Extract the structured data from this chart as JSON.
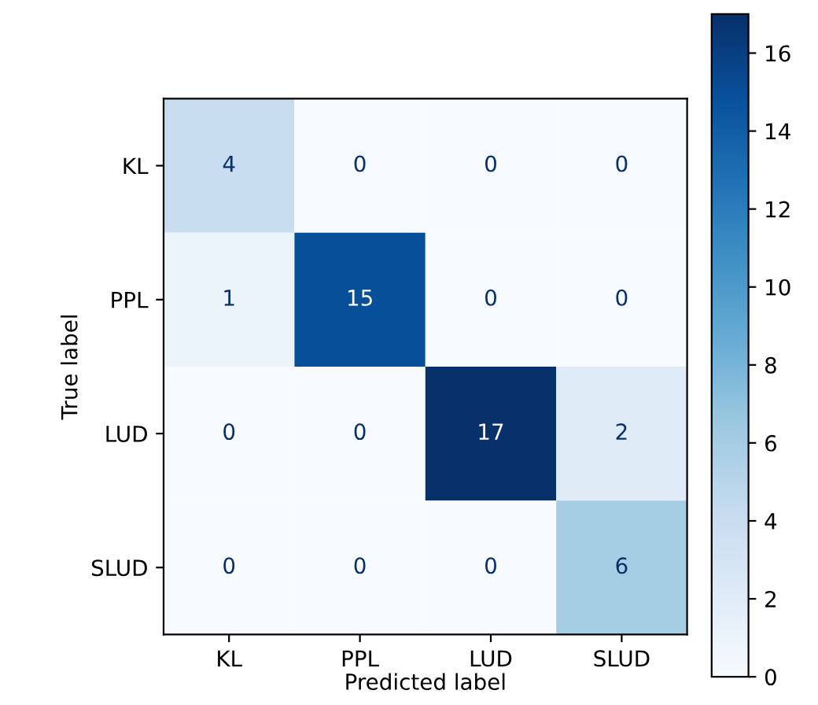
{
  "chart_data": {
    "type": "heatmap",
    "xlabel": "Predicted label",
    "ylabel": "True label",
    "categories": [
      "KL",
      "PPL",
      "LUD",
      "SLUD"
    ],
    "y_categories": [
      "KL",
      "PPL",
      "LUD",
      "SLUD"
    ],
    "cells": [
      [
        4,
        0,
        0,
        0
      ],
      [
        1,
        15,
        0,
        0
      ],
      [
        0,
        0,
        17,
        2
      ],
      [
        0,
        0,
        0,
        6
      ]
    ],
    "clim": [
      0,
      17
    ],
    "cticks": [
      0,
      2,
      4,
      6,
      8,
      10,
      12,
      14,
      16
    ],
    "data_labels": true,
    "grid": false
  }
}
